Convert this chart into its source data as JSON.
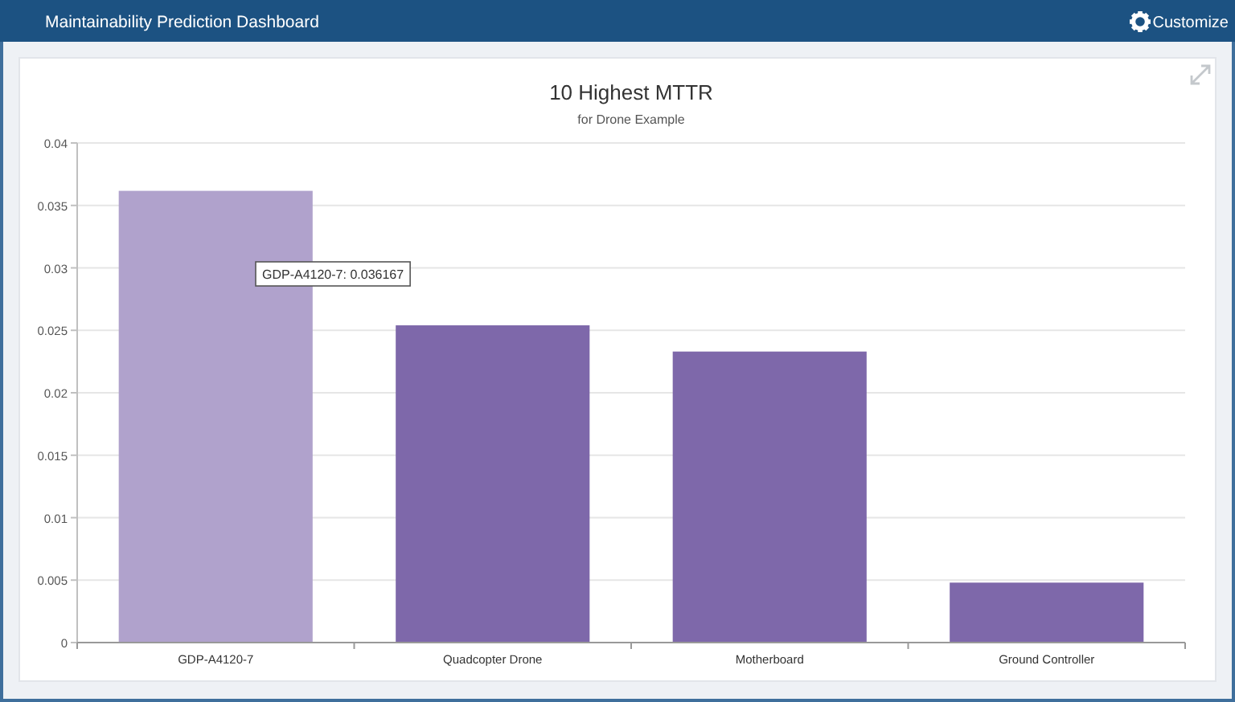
{
  "chart_data": {
    "type": "bar",
    "title": "10 Highest MTTR",
    "subtitle": "for Drone Example",
    "categories": [
      "GDP-A4120-7",
      "Quadcopter Drone",
      "Motherboard",
      "Ground Controller"
    ],
    "values": [
      0.036167,
      0.0254,
      0.0233,
      0.0048
    ],
    "colors": [
      "#b0a2cc",
      "#7e68aa",
      "#7e68aa",
      "#7e68aa"
    ],
    "ylim": [
      0,
      0.04
    ],
    "yticks": [
      0,
      0.005,
      0.01,
      0.015,
      0.02,
      0.025,
      0.03,
      0.035,
      0.04
    ],
    "grid": "y",
    "annotations": [
      "Maintainability Prediction Dashboard",
      "Customize",
      "GDP-A4120-7: 0.036167"
    ]
  }
}
